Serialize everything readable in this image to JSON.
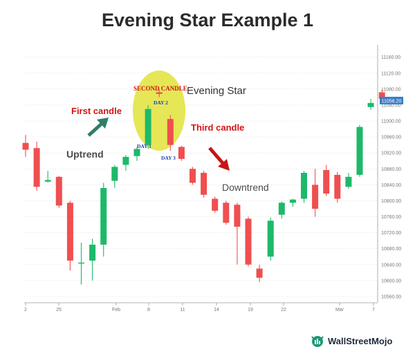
{
  "title": "Evening Star Example 1",
  "chart_data": {
    "type": "candlestick",
    "y_ticks": [
      11160,
      11120,
      11080,
      11040,
      11000,
      10960,
      10920,
      10880,
      10840,
      10800,
      10760,
      10720,
      10680,
      10640,
      10600,
      10560
    ],
    "y_tick_labels": [
      "11160.00",
      "11120.00",
      "11080.00",
      "11040.00",
      "11000.00",
      "10960.00",
      "10920.00",
      "10880.00",
      "10840.00",
      "10800.00",
      "10760.00",
      "10720.00",
      "10680.00",
      "10640.00",
      "10600.00",
      "10560.00"
    ],
    "ylim": [
      10546,
      11182
    ],
    "x_tick_labels": [
      "2",
      "25",
      "Feb",
      "8",
      "11",
      "14",
      "19",
      "22",
      "Mar",
      "7"
    ],
    "last_price_label": "11056.20",
    "candles": [
      {
        "o": 10945,
        "h": 10965,
        "l": 10910,
        "c": 10928,
        "color": "red"
      },
      {
        "o": 10932,
        "h": 10948,
        "l": 10825,
        "c": 10835,
        "color": "red"
      },
      {
        "o": 10848,
        "h": 10875,
        "l": 10845,
        "c": 10852,
        "color": "green"
      },
      {
        "o": 10860,
        "h": 10862,
        "l": 10782,
        "c": 10788,
        "color": "red"
      },
      {
        "o": 10795,
        "h": 10800,
        "l": 10625,
        "c": 10650,
        "color": "red"
      },
      {
        "o": 10645,
        "h": 10695,
        "l": 10590,
        "c": 10645,
        "color": "green"
      },
      {
        "o": 10650,
        "h": 10705,
        "l": 10600,
        "c": 10690,
        "color": "green"
      },
      {
        "o": 10690,
        "h": 10845,
        "l": 10660,
        "c": 10832,
        "color": "green"
      },
      {
        "o": 10850,
        "h": 10890,
        "l": 10832,
        "c": 10885,
        "color": "green"
      },
      {
        "o": 10890,
        "h": 10915,
        "l": 10875,
        "c": 10910,
        "color": "green"
      },
      {
        "o": 10912,
        "h": 10935,
        "l": 10900,
        "c": 10930,
        "color": "green"
      },
      {
        "o": 10940,
        "h": 11040,
        "l": 10930,
        "c": 11030,
        "color": "green"
      },
      {
        "o": 11072,
        "h": 11080,
        "l": 11060,
        "c": 11068,
        "color": "red"
      },
      {
        "o": 11005,
        "h": 11015,
        "l": 10925,
        "c": 10940,
        "color": "red"
      },
      {
        "o": 10935,
        "h": 10938,
        "l": 10900,
        "c": 10905,
        "color": "red"
      },
      {
        "o": 10880,
        "h": 10885,
        "l": 10840,
        "c": 10845,
        "color": "red"
      },
      {
        "o": 10870,
        "h": 10875,
        "l": 10808,
        "c": 10815,
        "color": "red"
      },
      {
        "o": 10805,
        "h": 10810,
        "l": 10770,
        "c": 10775,
        "color": "red"
      },
      {
        "o": 10795,
        "h": 10800,
        "l": 10740,
        "c": 10745,
        "color": "red"
      },
      {
        "o": 10790,
        "h": 10795,
        "l": 10640,
        "c": 10735,
        "color": "red"
      },
      {
        "o": 10755,
        "h": 10760,
        "l": 10635,
        "c": 10640,
        "color": "red"
      },
      {
        "o": 10630,
        "h": 10640,
        "l": 10596,
        "c": 10607,
        "color": "red"
      },
      {
        "o": 10660,
        "h": 10758,
        "l": 10650,
        "c": 10750,
        "color": "green"
      },
      {
        "o": 10765,
        "h": 10798,
        "l": 10755,
        "c": 10795,
        "color": "green"
      },
      {
        "o": 10795,
        "h": 10805,
        "l": 10785,
        "c": 10803,
        "color": "green"
      },
      {
        "o": 10805,
        "h": 10875,
        "l": 10795,
        "c": 10870,
        "color": "green"
      },
      {
        "o": 10840,
        "h": 10880,
        "l": 10760,
        "c": 10780,
        "color": "red"
      },
      {
        "o": 10877,
        "h": 10890,
        "l": 10812,
        "c": 10818,
        "color": "red"
      },
      {
        "o": 10865,
        "h": 10872,
        "l": 10795,
        "c": 10805,
        "color": "red"
      },
      {
        "o": 10835,
        "h": 10870,
        "l": 10830,
        "c": 10860,
        "color": "green"
      },
      {
        "o": 10865,
        "h": 10990,
        "l": 10860,
        "c": 10985,
        "color": "green"
      },
      {
        "o": 11035,
        "h": 11055,
        "l": 11028,
        "c": 11045,
        "color": "green"
      },
      {
        "o": 11072,
        "h": 11078,
        "l": 11048,
        "c": 11056,
        "color": "red"
      }
    ],
    "annotations": {
      "evening_star": "Evening Star",
      "first_candle": "First candle",
      "second_candle": "SECOND CANDLE",
      "third_candle": "Third candle",
      "day1": "DAY 1",
      "day2": "DAY 2",
      "day3": "DAY 3",
      "uptrend": "Uptrend",
      "downtrend": "Downtrend"
    },
    "colors": {
      "up": "#1db96a",
      "down": "#ef4f4f",
      "highlight": "#e1e33a",
      "accent_red": "#d41414",
      "arrow_green": "#2f7f6a",
      "arrow_red": "#c41616",
      "price_badge": "#3a7fc8"
    }
  },
  "brand": {
    "name": "WallStreetMojo"
  }
}
